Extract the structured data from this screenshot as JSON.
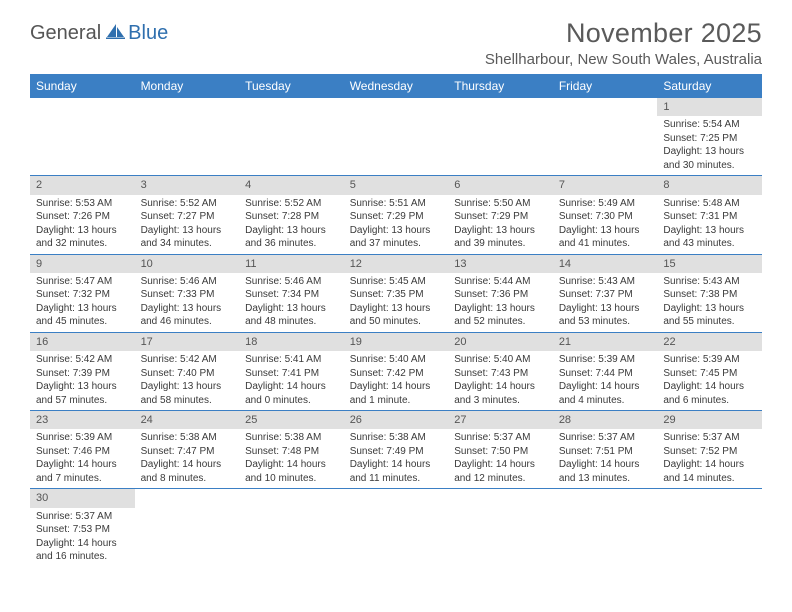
{
  "logo": {
    "general": "General",
    "blue": "Blue"
  },
  "title": "November 2025",
  "location": "Shellharbour, New South Wales, Australia",
  "colors": {
    "header_bg": "#3b7fc4",
    "header_fg": "#ffffff",
    "daynum_bg": "#e0e0e0",
    "row_border": "#3b7fc4",
    "text": "#3a3a3a",
    "title_text": "#5a5a5a",
    "logo_gray": "#555555",
    "logo_blue": "#2f6fae"
  },
  "fonts": {
    "title_size_pt": 20,
    "location_size_pt": 11,
    "weekday_size_pt": 9,
    "daynum_size_pt": 8,
    "body_size_pt": 7.5
  },
  "weekdays": [
    "Sunday",
    "Monday",
    "Tuesday",
    "Wednesday",
    "Thursday",
    "Friday",
    "Saturday"
  ],
  "weeks": [
    [
      null,
      null,
      null,
      null,
      null,
      null,
      {
        "n": "1",
        "sr": "5:54 AM",
        "ss": "7:25 PM",
        "dl": "13 hours and 30 minutes."
      }
    ],
    [
      {
        "n": "2",
        "sr": "5:53 AM",
        "ss": "7:26 PM",
        "dl": "13 hours and 32 minutes."
      },
      {
        "n": "3",
        "sr": "5:52 AM",
        "ss": "7:27 PM",
        "dl": "13 hours and 34 minutes."
      },
      {
        "n": "4",
        "sr": "5:52 AM",
        "ss": "7:28 PM",
        "dl": "13 hours and 36 minutes."
      },
      {
        "n": "5",
        "sr": "5:51 AM",
        "ss": "7:29 PM",
        "dl": "13 hours and 37 minutes."
      },
      {
        "n": "6",
        "sr": "5:50 AM",
        "ss": "7:29 PM",
        "dl": "13 hours and 39 minutes."
      },
      {
        "n": "7",
        "sr": "5:49 AM",
        "ss": "7:30 PM",
        "dl": "13 hours and 41 minutes."
      },
      {
        "n": "8",
        "sr": "5:48 AM",
        "ss": "7:31 PM",
        "dl": "13 hours and 43 minutes."
      }
    ],
    [
      {
        "n": "9",
        "sr": "5:47 AM",
        "ss": "7:32 PM",
        "dl": "13 hours and 45 minutes."
      },
      {
        "n": "10",
        "sr": "5:46 AM",
        "ss": "7:33 PM",
        "dl": "13 hours and 46 minutes."
      },
      {
        "n": "11",
        "sr": "5:46 AM",
        "ss": "7:34 PM",
        "dl": "13 hours and 48 minutes."
      },
      {
        "n": "12",
        "sr": "5:45 AM",
        "ss": "7:35 PM",
        "dl": "13 hours and 50 minutes."
      },
      {
        "n": "13",
        "sr": "5:44 AM",
        "ss": "7:36 PM",
        "dl": "13 hours and 52 minutes."
      },
      {
        "n": "14",
        "sr": "5:43 AM",
        "ss": "7:37 PM",
        "dl": "13 hours and 53 minutes."
      },
      {
        "n": "15",
        "sr": "5:43 AM",
        "ss": "7:38 PM",
        "dl": "13 hours and 55 minutes."
      }
    ],
    [
      {
        "n": "16",
        "sr": "5:42 AM",
        "ss": "7:39 PM",
        "dl": "13 hours and 57 minutes."
      },
      {
        "n": "17",
        "sr": "5:42 AM",
        "ss": "7:40 PM",
        "dl": "13 hours and 58 minutes."
      },
      {
        "n": "18",
        "sr": "5:41 AM",
        "ss": "7:41 PM",
        "dl": "14 hours and 0 minutes."
      },
      {
        "n": "19",
        "sr": "5:40 AM",
        "ss": "7:42 PM",
        "dl": "14 hours and 1 minute."
      },
      {
        "n": "20",
        "sr": "5:40 AM",
        "ss": "7:43 PM",
        "dl": "14 hours and 3 minutes."
      },
      {
        "n": "21",
        "sr": "5:39 AM",
        "ss": "7:44 PM",
        "dl": "14 hours and 4 minutes."
      },
      {
        "n": "22",
        "sr": "5:39 AM",
        "ss": "7:45 PM",
        "dl": "14 hours and 6 minutes."
      }
    ],
    [
      {
        "n": "23",
        "sr": "5:39 AM",
        "ss": "7:46 PM",
        "dl": "14 hours and 7 minutes."
      },
      {
        "n": "24",
        "sr": "5:38 AM",
        "ss": "7:47 PM",
        "dl": "14 hours and 8 minutes."
      },
      {
        "n": "25",
        "sr": "5:38 AM",
        "ss": "7:48 PM",
        "dl": "14 hours and 10 minutes."
      },
      {
        "n": "26",
        "sr": "5:38 AM",
        "ss": "7:49 PM",
        "dl": "14 hours and 11 minutes."
      },
      {
        "n": "27",
        "sr": "5:37 AM",
        "ss": "7:50 PM",
        "dl": "14 hours and 12 minutes."
      },
      {
        "n": "28",
        "sr": "5:37 AM",
        "ss": "7:51 PM",
        "dl": "14 hours and 13 minutes."
      },
      {
        "n": "29",
        "sr": "5:37 AM",
        "ss": "7:52 PM",
        "dl": "14 hours and 14 minutes."
      }
    ],
    [
      {
        "n": "30",
        "sr": "5:37 AM",
        "ss": "7:53 PM",
        "dl": "14 hours and 16 minutes."
      },
      null,
      null,
      null,
      null,
      null,
      null
    ]
  ],
  "labels": {
    "sunrise": "Sunrise:",
    "sunset": "Sunset:",
    "daylight": "Daylight:"
  }
}
